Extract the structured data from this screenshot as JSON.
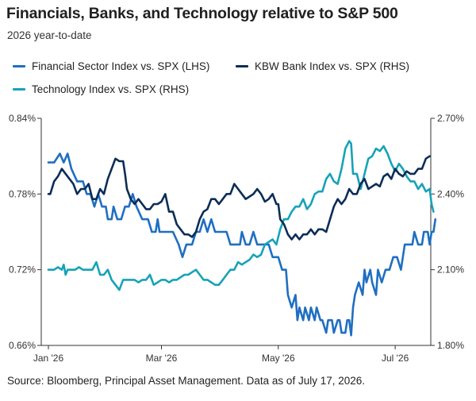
{
  "title": "Financials, Banks, and Technology relative to S&P 500",
  "subtitle": "2026 year-to-date",
  "source": "Source: Bloomberg, Principal Asset Management. Data as of July 17, 2026.",
  "chart_data": {
    "type": "line",
    "left_axis": {
      "ticks": [
        "0.84%",
        "0.78%",
        "0.72%",
        "0.66%"
      ],
      "values": [
        0.84,
        0.78,
        0.72,
        0.66
      ],
      "ylim": [
        0.66,
        0.84
      ]
    },
    "right_axis": {
      "ticks": [
        "2.70%",
        "2.40%",
        "2.10%",
        "1.80%"
      ],
      "values": [
        2.7,
        2.4,
        2.1,
        1.8
      ],
      "ylim": [
        1.8,
        2.7
      ]
    },
    "x_ticks": [
      "Jan '26",
      "Mar '26",
      "May '26",
      "Jul '26"
    ],
    "x_tick_days": [
      0,
      59,
      120,
      181
    ],
    "grid": false,
    "legend_placement": "top-left",
    "series": [
      {
        "name": "Financial Sector Index vs. SPX (LHS)",
        "axis": "left",
        "color": "#1f6fc1",
        "points": [
          [
            0,
            0.805
          ],
          [
            3,
            0.805
          ],
          [
            6,
            0.812
          ],
          [
            8,
            0.805
          ],
          [
            10,
            0.812
          ],
          [
            12,
            0.8
          ],
          [
            15,
            0.79
          ],
          [
            18,
            0.79
          ],
          [
            20,
            0.78
          ],
          [
            22,
            0.78
          ],
          [
            24,
            0.77
          ],
          [
            26,
            0.78
          ],
          [
            28,
            0.77
          ],
          [
            30,
            0.77
          ],
          [
            31,
            0.76
          ],
          [
            33,
            0.76
          ],
          [
            34,
            0.77
          ],
          [
            36,
            0.76
          ],
          [
            38,
            0.76
          ],
          [
            40,
            0.77
          ],
          [
            42,
            0.77
          ],
          [
            44,
            0.78
          ],
          [
            46,
            0.77
          ],
          [
            49,
            0.76
          ],
          [
            52,
            0.76
          ],
          [
            54,
            0.75
          ],
          [
            56,
            0.75
          ],
          [
            57,
            0.76
          ],
          [
            58,
            0.75
          ],
          [
            62,
            0.75
          ],
          [
            65,
            0.75
          ],
          [
            68,
            0.74
          ],
          [
            70,
            0.73
          ],
          [
            72,
            0.74
          ],
          [
            75,
            0.74
          ],
          [
            77,
            0.75
          ],
          [
            79,
            0.75
          ],
          [
            81,
            0.76
          ],
          [
            83,
            0.75
          ],
          [
            85,
            0.76
          ],
          [
            87,
            0.75
          ],
          [
            90,
            0.75
          ],
          [
            93,
            0.75
          ],
          [
            95,
            0.74
          ],
          [
            98,
            0.74
          ],
          [
            100,
            0.74
          ],
          [
            101,
            0.75
          ],
          [
            103,
            0.74
          ],
          [
            105,
            0.74
          ],
          [
            107,
            0.75
          ],
          [
            109,
            0.74
          ],
          [
            112,
            0.74
          ],
          [
            115,
            0.74
          ],
          [
            117,
            0.73
          ],
          [
            120,
            0.73
          ],
          [
            122,
            0.72
          ],
          [
            124,
            0.72
          ],
          [
            125,
            0.7
          ],
          [
            127,
            0.69
          ],
          [
            129,
            0.7
          ],
          [
            130,
            0.68
          ],
          [
            131,
            0.69
          ],
          [
            133,
            0.68
          ],
          [
            134,
            0.69
          ],
          [
            136,
            0.68
          ],
          [
            137,
            0.69
          ],
          [
            139,
            0.68
          ],
          [
            140,
            0.69
          ],
          [
            142,
            0.68
          ],
          [
            143,
            0.68
          ],
          [
            145,
            0.67
          ],
          [
            146,
            0.68
          ],
          [
            148,
            0.68
          ],
          [
            149,
            0.67
          ],
          [
            151,
            0.68
          ],
          [
            152,
            0.68
          ],
          [
            153,
            0.67
          ],
          [
            155,
            0.67
          ],
          [
            156,
            0.68
          ],
          [
            157,
            0.68
          ],
          [
            158,
            0.668
          ],
          [
            159,
            0.69
          ],
          [
            160,
            0.7
          ],
          [
            162,
            0.71
          ],
          [
            164,
            0.7
          ],
          [
            165,
            0.72
          ],
          [
            166,
            0.71
          ],
          [
            168,
            0.72
          ],
          [
            169,
            0.71
          ],
          [
            171,
            0.7
          ],
          [
            172,
            0.72
          ],
          [
            174,
            0.71
          ],
          [
            176,
            0.72
          ],
          [
            178,
            0.72
          ],
          [
            180,
            0.73
          ],
          [
            182,
            0.73
          ],
          [
            184,
            0.72
          ],
          [
            186,
            0.74
          ],
          [
            188,
            0.74
          ],
          [
            190,
            0.74
          ],
          [
            191,
            0.75
          ],
          [
            193,
            0.74
          ],
          [
            195,
            0.74
          ],
          [
            196,
            0.75
          ],
          [
            198,
            0.75
          ],
          [
            199,
            0.74
          ],
          [
            200,
            0.75
          ],
          [
            201,
            0.75
          ],
          [
            202,
            0.76
          ]
        ]
      },
      {
        "name": "KBW Bank Index vs. SPX (RHS)",
        "axis": "right",
        "color": "#0c2d57",
        "points": [
          [
            0,
            2.4
          ],
          [
            1,
            2.4
          ],
          [
            3,
            2.45
          ],
          [
            5,
            2.47
          ],
          [
            7,
            2.5
          ],
          [
            9,
            2.48
          ],
          [
            11,
            2.46
          ],
          [
            13,
            2.44
          ],
          [
            15,
            2.4
          ],
          [
            17,
            2.42
          ],
          [
            19,
            2.42
          ],
          [
            21,
            2.44
          ],
          [
            23,
            2.38
          ],
          [
            25,
            2.38
          ],
          [
            27,
            2.42
          ],
          [
            29,
            2.4
          ],
          [
            31,
            2.46
          ],
          [
            33,
            2.5
          ],
          [
            35,
            2.54
          ],
          [
            37,
            2.53
          ],
          [
            39,
            2.53
          ],
          [
            40,
            2.48
          ],
          [
            41,
            2.42
          ],
          [
            43,
            2.38
          ],
          [
            45,
            2.36
          ],
          [
            47,
            2.38
          ],
          [
            49,
            2.36
          ],
          [
            51,
            2.34
          ],
          [
            53,
            2.34
          ],
          [
            55,
            2.36
          ],
          [
            57,
            2.36
          ],
          [
            59,
            2.37
          ],
          [
            61,
            2.4
          ],
          [
            63,
            2.33
          ],
          [
            65,
            2.33
          ],
          [
            67,
            2.28
          ],
          [
            69,
            2.26
          ],
          [
            71,
            2.24
          ],
          [
            73,
            2.24
          ],
          [
            75,
            2.23
          ],
          [
            77,
            2.25
          ],
          [
            79,
            2.3
          ],
          [
            81,
            2.33
          ],
          [
            83,
            2.34
          ],
          [
            85,
            2.38
          ],
          [
            87,
            2.38
          ],
          [
            89,
            2.36
          ],
          [
            91,
            2.38
          ],
          [
            93,
            2.4
          ],
          [
            95,
            2.4
          ],
          [
            97,
            2.44
          ],
          [
            99,
            2.42
          ],
          [
            101,
            2.4
          ],
          [
            103,
            2.38
          ],
          [
            105,
            2.39
          ],
          [
            107,
            2.4
          ],
          [
            109,
            2.42
          ],
          [
            111,
            2.4
          ],
          [
            113,
            2.37
          ],
          [
            115,
            2.38
          ],
          [
            117,
            2.4
          ],
          [
            119,
            2.36
          ],
          [
            120,
            2.36
          ],
          [
            121,
            2.3
          ],
          [
            123,
            2.28
          ],
          [
            124,
            2.26
          ],
          [
            125,
            2.24
          ],
          [
            127,
            2.22
          ],
          [
            129,
            2.24
          ],
          [
            131,
            2.22
          ],
          [
            133,
            2.24
          ],
          [
            135,
            2.24
          ],
          [
            137,
            2.26
          ],
          [
            139,
            2.24
          ],
          [
            141,
            2.26
          ],
          [
            143,
            2.26
          ],
          [
            145,
            2.25
          ],
          [
            147,
            2.3
          ],
          [
            149,
            2.35
          ],
          [
            151,
            2.38
          ],
          [
            153,
            2.36
          ],
          [
            155,
            2.38
          ],
          [
            157,
            2.42
          ],
          [
            159,
            2.4
          ],
          [
            161,
            2.4
          ],
          [
            163,
            2.44
          ],
          [
            165,
            2.46
          ],
          [
            167,
            2.42
          ],
          [
            169,
            2.43
          ],
          [
            171,
            2.44
          ],
          [
            173,
            2.43
          ],
          [
            175,
            2.47
          ],
          [
            177,
            2.48
          ],
          [
            179,
            2.46
          ],
          [
            181,
            2.5
          ],
          [
            183,
            2.48
          ],
          [
            185,
            2.47
          ],
          [
            187,
            2.49
          ],
          [
            189,
            2.48
          ],
          [
            191,
            2.48
          ],
          [
            193,
            2.5
          ],
          [
            195,
            2.5
          ],
          [
            197,
            2.54
          ],
          [
            199,
            2.55
          ]
        ]
      },
      {
        "name": "Technology Index vs. SPX (RHS)",
        "axis": "right",
        "color": "#17a2b8",
        "points": [
          [
            0,
            2.1
          ],
          [
            3,
            2.1
          ],
          [
            5,
            2.11
          ],
          [
            7,
            2.1
          ],
          [
            8,
            2.12
          ],
          [
            9,
            2.08
          ],
          [
            10,
            2.1
          ],
          [
            12,
            2.1
          ],
          [
            14,
            2.1
          ],
          [
            16,
            2.11
          ],
          [
            18,
            2.1
          ],
          [
            20,
            2.1
          ],
          [
            23,
            2.1
          ],
          [
            25,
            2.13
          ],
          [
            27,
            2.08
          ],
          [
            29,
            2.08
          ],
          [
            31,
            2.1
          ],
          [
            33,
            2.06
          ],
          [
            35,
            2.04
          ],
          [
            37,
            2.02
          ],
          [
            39,
            2.06
          ],
          [
            41,
            2.06
          ],
          [
            43,
            2.06
          ],
          [
            45,
            2.06
          ],
          [
            47,
            2.05
          ],
          [
            49,
            2.06
          ],
          [
            51,
            2.06
          ],
          [
            53,
            2.08
          ],
          [
            55,
            2.04
          ],
          [
            57,
            2.05
          ],
          [
            59,
            2.06
          ],
          [
            61,
            2.06
          ],
          [
            63,
            2.05
          ],
          [
            65,
            2.06
          ],
          [
            67,
            2.06
          ],
          [
            69,
            2.07
          ],
          [
            71,
            2.08
          ],
          [
            73,
            2.08
          ],
          [
            75,
            2.09
          ],
          [
            77,
            2.1
          ],
          [
            79,
            2.08
          ],
          [
            81,
            2.06
          ],
          [
            83,
            2.06
          ],
          [
            85,
            2.05
          ],
          [
            87,
            2.04
          ],
          [
            89,
            2.04
          ],
          [
            91,
            2.06
          ],
          [
            93,
            2.08
          ],
          [
            95,
            2.1
          ],
          [
            97,
            2.1
          ],
          [
            99,
            2.13
          ],
          [
            101,
            2.12
          ],
          [
            103,
            2.13
          ],
          [
            105,
            2.14
          ],
          [
            107,
            2.16
          ],
          [
            109,
            2.15
          ],
          [
            111,
            2.16
          ],
          [
            113,
            2.2
          ],
          [
            115,
            2.21
          ],
          [
            117,
            2.22
          ],
          [
            119,
            2.2
          ],
          [
            121,
            2.26
          ],
          [
            123,
            2.3
          ],
          [
            125,
            2.3
          ],
          [
            127,
            2.33
          ],
          [
            129,
            2.35
          ],
          [
            131,
            2.35
          ],
          [
            133,
            2.38
          ],
          [
            135,
            2.34
          ],
          [
            137,
            2.36
          ],
          [
            139,
            2.4
          ],
          [
            141,
            2.41
          ],
          [
            143,
            2.41
          ],
          [
            145,
            2.46
          ],
          [
            147,
            2.48
          ],
          [
            149,
            2.45
          ],
          [
            151,
            2.44
          ],
          [
            153,
            2.5
          ],
          [
            155,
            2.58
          ],
          [
            157,
            2.61
          ],
          [
            158,
            2.6
          ],
          [
            159,
            2.48
          ],
          [
            161,
            2.48
          ],
          [
            163,
            2.42
          ],
          [
            165,
            2.48
          ],
          [
            167,
            2.54
          ],
          [
            169,
            2.55
          ],
          [
            171,
            2.58
          ],
          [
            173,
            2.57
          ],
          [
            175,
            2.59
          ],
          [
            177,
            2.56
          ],
          [
            179,
            2.52
          ],
          [
            181,
            2.49
          ],
          [
            183,
            2.52
          ],
          [
            185,
            2.5
          ],
          [
            187,
            2.47
          ],
          [
            189,
            2.45
          ],
          [
            191,
            2.45
          ],
          [
            193,
            2.42
          ],
          [
            195,
            2.44
          ],
          [
            197,
            2.41
          ],
          [
            199,
            2.42
          ],
          [
            200,
            2.36
          ],
          [
            201,
            2.33
          ]
        ]
      }
    ]
  }
}
